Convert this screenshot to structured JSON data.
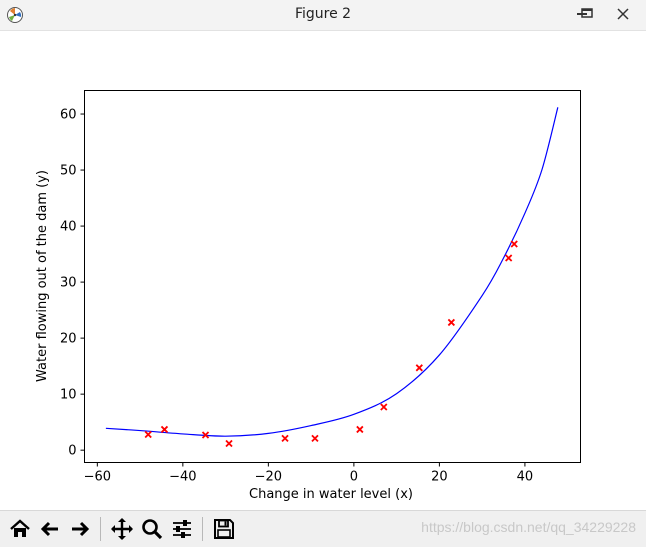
{
  "window": {
    "title": "Figure 2"
  },
  "chart_data": {
    "type": "scatter",
    "title": "",
    "xlabel": "Change in water level (x)",
    "ylabel": "Water flowing out of the dam (y)",
    "xlim": [
      -63,
      53
    ],
    "ylim": [
      -2.2,
      64.2
    ],
    "xticks": [
      -60,
      -40,
      -20,
      0,
      20,
      40
    ],
    "yticks": [
      0,
      10,
      20,
      30,
      40,
      50,
      60
    ],
    "grid": false,
    "series": [
      {
        "kind": "scatter",
        "marker": "x",
        "color": "#ff0000",
        "points": [
          {
            "x": -48.1,
            "y": 2.8
          },
          {
            "x": -44.3,
            "y": 3.7
          },
          {
            "x": -34.7,
            "y": 2.7
          },
          {
            "x": -29.2,
            "y": 1.2
          },
          {
            "x": -16.1,
            "y": 2.1
          },
          {
            "x": -9.1,
            "y": 2.1
          },
          {
            "x": 1.4,
            "y": 3.7
          },
          {
            "x": 7.0,
            "y": 7.7
          },
          {
            "x": 15.3,
            "y": 14.7
          },
          {
            "x": 22.8,
            "y": 22.8
          },
          {
            "x": 36.2,
            "y": 34.3
          },
          {
            "x": 37.5,
            "y": 36.8
          }
        ]
      },
      {
        "kind": "line",
        "color": "#0000ff",
        "points": [
          {
            "x": -58,
            "y": 3.9
          },
          {
            "x": -50,
            "y": 3.5
          },
          {
            "x": -40,
            "y": 2.9
          },
          {
            "x": -30,
            "y": 2.5
          },
          {
            "x": -20,
            "y": 3.0
          },
          {
            "x": -10,
            "y": 4.4
          },
          {
            "x": 0,
            "y": 6.4
          },
          {
            "x": 10,
            "y": 10.1
          },
          {
            "x": 20,
            "y": 17.0
          },
          {
            "x": 30,
            "y": 27.6
          },
          {
            "x": 35,
            "y": 34.3
          },
          {
            "x": 40,
            "y": 42.3
          },
          {
            "x": 44,
            "y": 50.1
          },
          {
            "x": 47.7,
            "y": 61.2
          }
        ]
      }
    ]
  },
  "toolbar": {
    "buttons": [
      {
        "name": "home-button",
        "icon": "home-icon"
      },
      {
        "name": "back-button",
        "icon": "arrow-left-icon"
      },
      {
        "name": "forward-button",
        "icon": "arrow-right-icon"
      },
      {
        "name": "pan-button",
        "icon": "move-icon"
      },
      {
        "name": "zoom-button",
        "icon": "magnifier-icon"
      },
      {
        "name": "configure-subplots-button",
        "icon": "sliders-icon"
      },
      {
        "name": "save-button",
        "icon": "floppy-disk-icon"
      }
    ],
    "watermark": "https://blog.csdn.net/qq_34229228"
  }
}
